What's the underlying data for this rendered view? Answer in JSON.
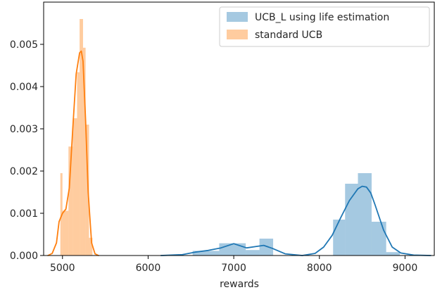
{
  "chart_data": {
    "type": "bar",
    "title": "",
    "xlabel": "rewards",
    "ylabel": "",
    "xlim": [
      4780,
      9350
    ],
    "ylim": [
      0,
      0.006
    ],
    "x_ticks": [
      5000,
      6000,
      7000,
      8000,
      9000
    ],
    "x_tick_labels": [
      "5000",
      "6000",
      "7000",
      "8000",
      "9000"
    ],
    "y_ticks": [
      0,
      0.001,
      0.002,
      0.003,
      0.004,
      0.005
    ],
    "y_tick_labels": [
      "0.000",
      "0.001",
      "0.002",
      "0.003",
      "0.004",
      "0.005"
    ],
    "grid": false,
    "legend_position": "top-right",
    "series": [
      {
        "name": "UCB_L using life estimation",
        "color": "#1f77b4",
        "bar_alpha": 0.4,
        "histogram": [
          {
            "x0": 6520,
            "x1": 6830,
            "density": 0.00011
          },
          {
            "x0": 6830,
            "x1": 7140,
            "density": 0.00029
          },
          {
            "x0": 7140,
            "x1": 7300,
            "density": 0.00013
          },
          {
            "x0": 7300,
            "x1": 7460,
            "density": 0.0004
          },
          {
            "x0": 8160,
            "x1": 8300,
            "density": 0.00085
          },
          {
            "x0": 8300,
            "x1": 8450,
            "density": 0.0017
          },
          {
            "x0": 8450,
            "x1": 8610,
            "density": 0.00195
          },
          {
            "x0": 8610,
            "x1": 8780,
            "density": 0.0008
          },
          {
            "x0": 8780,
            "x1": 8940,
            "density": 8e-05
          }
        ],
        "kde": {
          "x": [
            6150,
            6400,
            6550,
            6700,
            6850,
            7000,
            7150,
            7250,
            7350,
            7450,
            7600,
            7800,
            7950,
            8050,
            8150,
            8250,
            8350,
            8450,
            8500,
            8550,
            8600,
            8650,
            8750,
            8850,
            8950,
            9100,
            9300
          ],
          "y": [
            0.0,
            2e-05,
            8e-05,
            0.00012,
            0.00018,
            0.00028,
            0.00018,
            0.00021,
            0.00024,
            0.00017,
            4e-05,
            0.0,
            5e-05,
            0.0002,
            0.00048,
            0.0009,
            0.0013,
            0.00158,
            0.00164,
            0.00162,
            0.00148,
            0.0012,
            0.0006,
            0.0002,
            6e-05,
            1e-05,
            0.0
          ]
        }
      },
      {
        "name": "standard UCB",
        "color": "#ff7f0e",
        "bar_alpha": 0.4,
        "histogram": [
          {
            "x0": 4975,
            "x1": 5000,
            "density": 0.00195
          },
          {
            "x0": 5000,
            "x1": 5070,
            "density": 0.00106
          },
          {
            "x0": 5070,
            "x1": 5120,
            "density": 0.00258
          },
          {
            "x0": 5120,
            "x1": 5170,
            "density": 0.00325
          },
          {
            "x0": 5170,
            "x1": 5200,
            "density": 0.00434
          },
          {
            "x0": 5200,
            "x1": 5240,
            "density": 0.0056
          },
          {
            "x0": 5240,
            "x1": 5270,
            "density": 0.00492
          },
          {
            "x0": 5270,
            "x1": 5310,
            "density": 0.0031
          },
          {
            "x0": 5310,
            "x1": 5350,
            "density": 0.00042
          }
        ],
        "kde": {
          "x": [
            4830,
            4880,
            4930,
            4960,
            5000,
            5040,
            5080,
            5120,
            5160,
            5200,
            5220,
            5240,
            5270,
            5300,
            5340,
            5380,
            5420
          ],
          "y": [
            0.0,
            5e-05,
            0.0003,
            0.0008,
            0.001,
            0.0011,
            0.0016,
            0.003,
            0.0043,
            0.0048,
            0.00484,
            0.0046,
            0.0032,
            0.0015,
            0.0003,
            4e-05,
            0.0
          ]
        }
      }
    ]
  }
}
